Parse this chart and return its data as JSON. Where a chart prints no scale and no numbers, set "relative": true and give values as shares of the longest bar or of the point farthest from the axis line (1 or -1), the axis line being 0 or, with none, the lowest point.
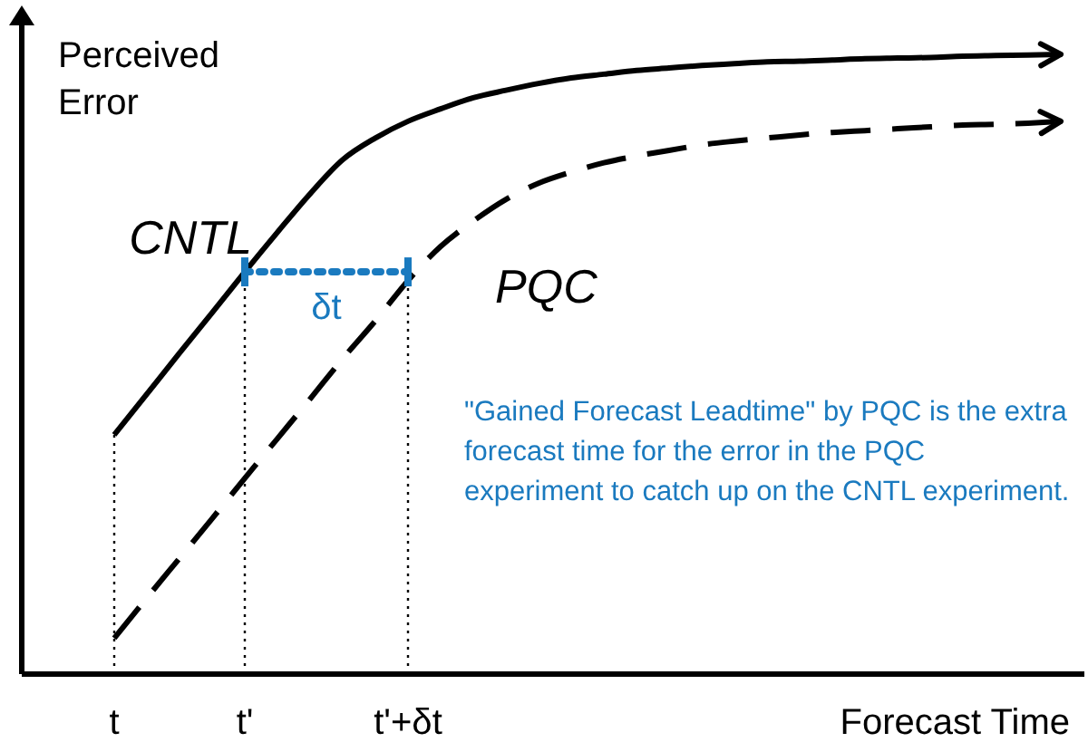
{
  "chart_data": {
    "type": "line",
    "relative": true,
    "ylabel": "Perceived Error",
    "xlabel": "Forecast Time",
    "categories": [
      "t",
      null,
      null,
      null,
      "t'",
      null,
      null,
      null,
      null,
      "t'+δt",
      null,
      null,
      null,
      null,
      null,
      null,
      null,
      null,
      null,
      null,
      null,
      null,
      null,
      null,
      null,
      null,
      null,
      null,
      null,
      null
    ],
    "series": [
      {
        "name": "CNTL",
        "color": "#000000",
        "line_style": "solid",
        "values": [
          0.386,
          0.452,
          0.518,
          0.583,
          0.649,
          0.713,
          0.775,
          0.83,
          0.865,
          0.892,
          0.912,
          0.93,
          0.942,
          0.953,
          0.962,
          0.968,
          0.974,
          0.978,
          0.982,
          0.985,
          0.988,
          0.989,
          0.991,
          0.993,
          0.994,
          0.995,
          0.997,
          0.998,
          0.999,
          1.0
        ]
      },
      {
        "name": "PQC",
        "color": "#000000",
        "line_style": "dashed",
        "values": [
          0.058,
          0.123,
          0.187,
          0.251,
          0.316,
          0.38,
          0.444,
          0.509,
          0.57,
          0.635,
          0.69,
          0.731,
          0.766,
          0.792,
          0.81,
          0.825,
          0.836,
          0.845,
          0.854,
          0.86,
          0.865,
          0.87,
          0.874,
          0.877,
          0.88,
          0.883,
          0.886,
          0.887,
          0.889,
          0.892
        ]
      }
    ],
    "ref_lines": [
      {
        "axis": "x",
        "value": "t",
        "line_style": "dotted",
        "color": "#000000"
      },
      {
        "axis": "x",
        "value": "t'",
        "line_style": "dotted",
        "color": "#000000"
      },
      {
        "axis": "x",
        "value": "t'+δt",
        "line_style": "dotted",
        "color": "#000000"
      }
    ],
    "annotations": [
      "δt",
      "\"Gained Forecast Leadtime\" by PQC is the extra forecast time for the error in the PQC experiment to catch up on the CNTL experiment."
    ],
    "legend": false
  }
}
